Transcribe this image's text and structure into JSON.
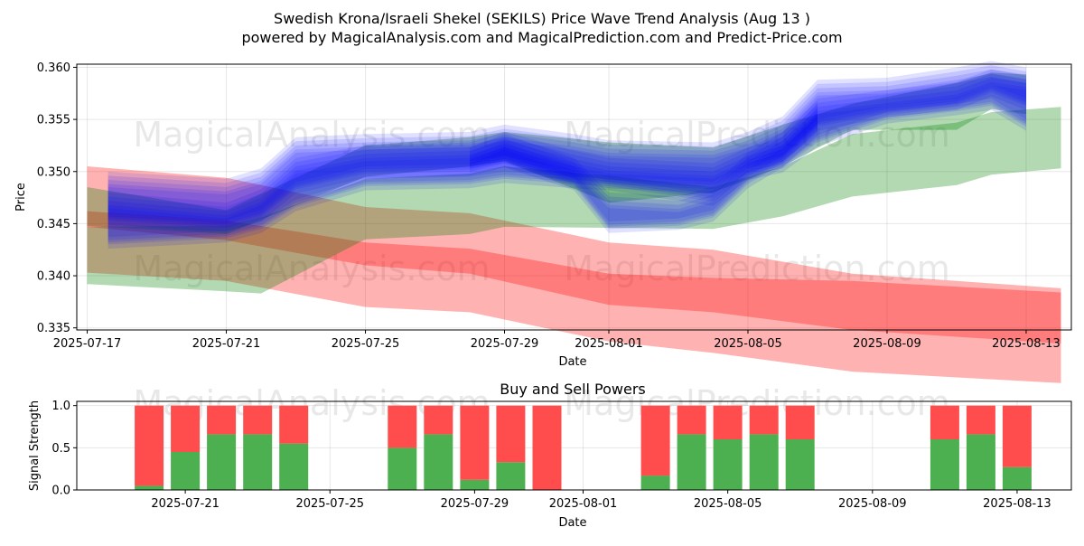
{
  "chart_data": [
    {
      "type": "area",
      "title_line1": "Swedish Krona/Israeli Shekel (SEKILS) Price Wave Trend Analysis (Aug 13 )",
      "title_line2": "powered by MagicalAnalysis.com and MagicalPrediction.com and Predict-Price.com",
      "xlabel": "Date",
      "ylabel": "Price",
      "ylim": [
        0.3348,
        0.3603
      ],
      "xlim": [
        "2025-07-16.7",
        "2025-08-14.3"
      ],
      "x_ticks": [
        "2025-07-17",
        "2025-07-21",
        "2025-07-25",
        "2025-07-29",
        "2025-08-01",
        "2025-08-05",
        "2025-08-09",
        "2025-08-13"
      ],
      "y_ticks": [
        "0.335",
        "0.340",
        "0.345",
        "0.350",
        "0.355",
        "0.360"
      ],
      "grid": true,
      "watermarks": [
        "MagicalAnalysis.com",
        "MagicalPrediction.com",
        "MagicalAnalysis.com",
        "MagicalPrediction.com"
      ],
      "colors": {
        "red": "#ff0000",
        "green": "#008000",
        "blue": "#0000ff"
      },
      "series": [
        {
          "name": "red band wide",
          "color": "red",
          "dates": [
            "2025-07-17",
            "2025-07-21",
            "2025-07-25",
            "2025-07-28",
            "2025-08-01",
            "2025-08-04",
            "2025-08-08",
            "2025-08-14"
          ],
          "upper": [
            0.3505,
            0.3494,
            0.3466,
            0.346,
            0.3432,
            0.3425,
            0.3402,
            0.3388
          ],
          "lower": [
            0.3403,
            0.3395,
            0.337,
            0.3365,
            0.3337,
            0.3326,
            0.3308,
            0.3297
          ]
        },
        {
          "name": "red band core",
          "color": "red",
          "dates": [
            "2025-07-17",
            "2025-07-21",
            "2025-07-25",
            "2025-07-28",
            "2025-08-01",
            "2025-08-04",
            "2025-08-08",
            "2025-08-14"
          ],
          "upper": [
            0.3462,
            0.3453,
            0.3432,
            0.3426,
            0.3402,
            0.3398,
            0.3395,
            0.3384
          ],
          "lower": [
            0.3447,
            0.3434,
            0.341,
            0.3402,
            0.3372,
            0.3365,
            0.3348,
            0.3335
          ]
        },
        {
          "name": "green band wide",
          "color": "green",
          "dates": [
            "2025-07-17",
            "2025-07-21",
            "2025-07-22",
            "2025-07-25",
            "2025-07-28",
            "2025-07-29",
            "2025-08-01",
            "2025-08-04",
            "2025-08-06",
            "2025-08-08",
            "2025-08-11",
            "2025-08-12",
            "2025-08-14"
          ],
          "upper": [
            0.3447,
            0.3448,
            0.3456,
            0.3493,
            0.3498,
            0.3505,
            0.3496,
            0.3485,
            0.3505,
            0.3536,
            0.3547,
            0.3557,
            0.3562
          ],
          "lower": [
            0.3392,
            0.3385,
            0.3383,
            0.3435,
            0.344,
            0.3447,
            0.3446,
            0.3445,
            0.3457,
            0.3476,
            0.3487,
            0.3497,
            0.3503
          ]
        },
        {
          "name": "green band upper",
          "color": "green",
          "dates": [
            "2025-07-17",
            "2025-07-21",
            "2025-07-25",
            "2025-07-28",
            "2025-07-29",
            "2025-08-01",
            "2025-08-04",
            "2025-08-06",
            "2025-08-08",
            "2025-08-11",
            "2025-08-12",
            "2025-08-13"
          ],
          "upper": [
            0.3485,
            0.3463,
            0.3525,
            0.3533,
            0.3538,
            0.3528,
            0.3523,
            0.3545,
            0.3565,
            0.3585,
            0.3595,
            0.3593
          ],
          "lower": [
            0.3448,
            0.344,
            0.3495,
            0.3505,
            0.351,
            0.347,
            0.348,
            0.3505,
            0.354,
            0.354,
            0.356,
            0.3555
          ]
        },
        {
          "name": "blue band outer",
          "color": "blue",
          "dates": [
            "2025-07-17.6",
            "2025-07-21",
            "2025-07-22",
            "2025-07-23",
            "2025-07-25",
            "2025-07-28",
            "2025-07-29",
            "2025-07-31",
            "2025-08-01",
            "2025-08-04",
            "2025-08-05",
            "2025-08-06",
            "2025-08-07",
            "2025-08-09",
            "2025-08-11",
            "2025-08-12",
            "2025-08-13"
          ],
          "upper": [
            0.3492,
            0.3485,
            0.3495,
            0.3525,
            0.3528,
            0.353,
            0.3537,
            0.3528,
            0.3522,
            0.352,
            0.353,
            0.3545,
            0.358,
            0.3582,
            0.3592,
            0.3598,
            0.3592
          ],
          "lower": [
            0.3432,
            0.3438,
            0.3447,
            0.3468,
            0.3488,
            0.349,
            0.3495,
            0.349,
            0.3488,
            0.3473,
            0.3498,
            0.3505,
            0.353,
            0.3552,
            0.356,
            0.3565,
            0.3545
          ]
        },
        {
          "name": "blue band core",
          "color": "blue",
          "dates": [
            "2025-07-17.6",
            "2025-07-21",
            "2025-07-22",
            "2025-07-23",
            "2025-07-25",
            "2025-07-28",
            "2025-07-29",
            "2025-07-31",
            "2025-08-01",
            "2025-08-04",
            "2025-08-05",
            "2025-08-06",
            "2025-08-07",
            "2025-08-09",
            "2025-08-11",
            "2025-08-12",
            "2025-08-13"
          ],
          "upper": [
            0.3472,
            0.3462,
            0.3475,
            0.3505,
            0.3517,
            0.352,
            0.353,
            0.3512,
            0.3505,
            0.35,
            0.3515,
            0.3525,
            0.3562,
            0.357,
            0.3578,
            0.359,
            0.3585
          ],
          "lower": [
            0.3455,
            0.3448,
            0.3458,
            0.3485,
            0.35,
            0.3502,
            0.351,
            0.3495,
            0.349,
            0.3485,
            0.3505,
            0.3515,
            0.3545,
            0.3558,
            0.3565,
            0.3578,
            0.3565
          ]
        },
        {
          "name": "blue dip",
          "color": "blue",
          "dates": [
            "2025-07-28",
            "2025-07-29",
            "2025-07-31",
            "2025-08-01",
            "2025-08-03",
            "2025-08-04",
            "2025-08-05",
            "2025-08-06",
            "2025-08-07"
          ],
          "upper": [
            0.3515,
            0.3528,
            0.3505,
            0.3472,
            0.3468,
            0.3478,
            0.351,
            0.353,
            0.356
          ],
          "lower": [
            0.3505,
            0.351,
            0.3488,
            0.3447,
            0.345,
            0.3458,
            0.349,
            0.351,
            0.354
          ]
        }
      ]
    },
    {
      "type": "bar",
      "title": "Buy and Sell Powers",
      "xlabel": "Date",
      "ylabel": "Signal Strength",
      "ylim": [
        0,
        1.05
      ],
      "x_ticks": [
        "2025-07-21",
        "2025-07-25",
        "2025-07-29",
        "2025-08-01",
        "2025-08-05",
        "2025-08-09",
        "2025-08-13"
      ],
      "y_ticks": [
        "0.0",
        "0.5",
        "1.0"
      ],
      "grid": true,
      "watermarks": [
        "MagicalAnalysis.com",
        "MagicalPrediction.com"
      ],
      "colors": {
        "buy": "#4caf50",
        "sell": "#ff4d4d"
      },
      "dates": [
        "2025-07-20",
        "2025-07-21",
        "2025-07-22",
        "2025-07-23",
        "2025-07-24",
        "2025-07-27",
        "2025-07-28",
        "2025-07-29",
        "2025-07-30",
        "2025-07-31",
        "2025-08-03",
        "2025-08-04",
        "2025-08-05",
        "2025-08-06",
        "2025-08-07",
        "2025-08-11",
        "2025-08-12",
        "2025-08-13"
      ],
      "buy": [
        0.05,
        0.45,
        0.66,
        0.66,
        0.55,
        0.5,
        0.66,
        0.12,
        0.33,
        0.0,
        0.17,
        0.66,
        0.6,
        0.66,
        0.6,
        0.6,
        0.66,
        0.27
      ],
      "sell": [
        0.95,
        0.55,
        0.34,
        0.34,
        0.45,
        0.5,
        0.34,
        0.88,
        0.67,
        1.0,
        0.83,
        0.34,
        0.4,
        0.34,
        0.4,
        0.4,
        0.34,
        0.73
      ]
    }
  ]
}
